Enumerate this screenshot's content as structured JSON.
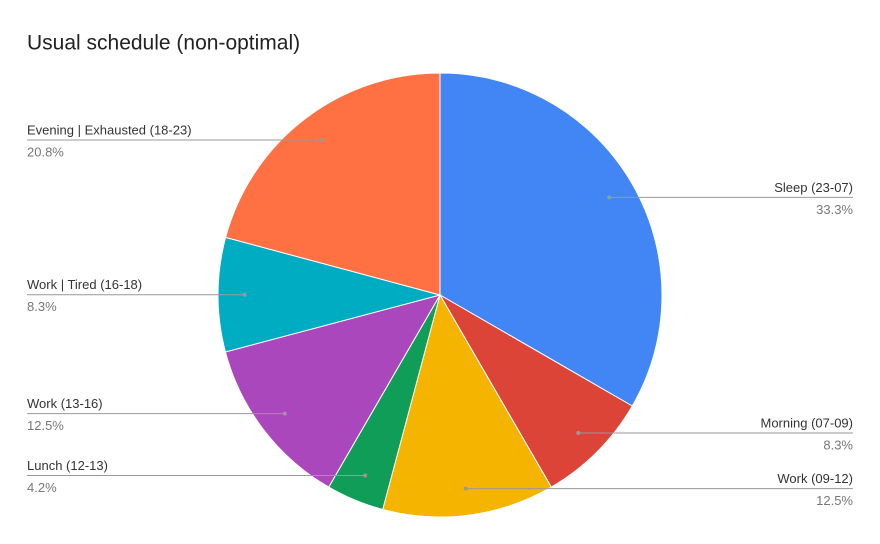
{
  "chart_data": {
    "type": "pie",
    "title": "Usual schedule (non-optimal)",
    "categories": [
      "Sleep (23-07)",
      "Morning (07-09)",
      "Work (09-12)",
      "Lunch (12-13)",
      "Work (13-16)",
      "Work | Tired (16-18)",
      "Evening | Exhausted (18-23)"
    ],
    "values": [
      33.3,
      8.3,
      12.5,
      4.2,
      12.5,
      8.3,
      20.8
    ],
    "value_labels": [
      "33.3%",
      "8.3%",
      "12.5%",
      "4.2%",
      "12.5%",
      "8.3%",
      "20.8%"
    ],
    "colors": [
      "#4285f4",
      "#db4437",
      "#f4b400",
      "#0f9d58",
      "#ab47bc",
      "#00acc1",
      "#ff7043"
    ]
  }
}
